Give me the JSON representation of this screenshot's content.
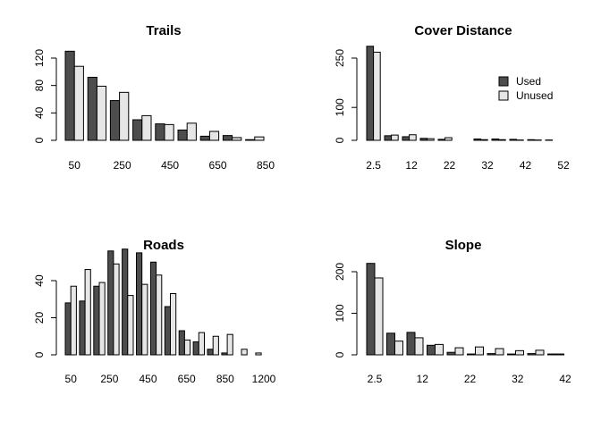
{
  "colors": {
    "used": "#4d4d4d",
    "unused": "#e6e6e6",
    "stroke": "#000000"
  },
  "legend": {
    "placement": "top-right",
    "panel": "Cover Distance",
    "labels": [
      "Used",
      "Unused"
    ]
  },
  "chart_data": [
    {
      "type": "bar",
      "title": "Trails",
      "categories": [
        "50",
        "150",
        "250",
        "350",
        "450",
        "550",
        "650",
        "750",
        "850"
      ],
      "xtick_labels": [
        "50",
        "250",
        "450",
        "650",
        "850"
      ],
      "series": [
        {
          "name": "Used",
          "values": [
            130,
            92,
            58,
            30,
            24,
            15,
            6,
            7,
            1
          ]
        },
        {
          "name": "Unused",
          "values": [
            108,
            79,
            70,
            36,
            23,
            25,
            13,
            4,
            5
          ]
        }
      ],
      "yticks": [
        0,
        40,
        80,
        120
      ],
      "ylim": [
        0,
        140
      ]
    },
    {
      "type": "bar",
      "title": "Cover Distance",
      "categories": [
        "2.5",
        "7.5",
        "12.5",
        "17.5",
        "22.5",
        "27.5",
        "32.5",
        "37.5",
        "42.5",
        "47.5",
        "52.5"
      ],
      "xtick_labels": [
        "2.5",
        "12",
        "22",
        "32",
        "42",
        "52"
      ],
      "series": [
        {
          "name": "Used",
          "values": [
            286,
            14,
            11,
            6,
            3,
            0,
            4,
            4,
            3,
            2,
            1
          ]
        },
        {
          "name": "Unused",
          "values": [
            268,
            16,
            17,
            5,
            8,
            0,
            2,
            2,
            1,
            1,
            0
          ]
        }
      ],
      "yticks": [
        0,
        100,
        250
      ],
      "ylim": [
        0,
        300
      ]
    },
    {
      "type": "bar",
      "title": "Roads",
      "categories": [
        "50",
        "150",
        "250",
        "350",
        "450",
        "550",
        "650",
        "750",
        "850",
        "950",
        "1050",
        "1150",
        "1250",
        "1350"
      ],
      "xtick_labels": [
        "50",
        "250",
        "450",
        "650",
        "850",
        "1200"
      ],
      "series": [
        {
          "name": "Used",
          "values": [
            28,
            29,
            37,
            56,
            57,
            55,
            50,
            26,
            13,
            7,
            3,
            1,
            0,
            0
          ]
        },
        {
          "name": "Unused",
          "values": [
            37,
            46,
            39,
            49,
            32,
            38,
            43,
            33,
            8,
            12,
            10,
            11,
            3,
            1
          ]
        }
      ],
      "yticks": [
        0,
        20,
        40
      ],
      "ylim": [
        0,
        62
      ]
    },
    {
      "type": "bar",
      "title": "Slope",
      "categories": [
        "2.5",
        "7.5",
        "12.5",
        "17.5",
        "22.5",
        "27.5",
        "32.5",
        "37.5",
        "42.5",
        "47.5"
      ],
      "xtick_labels": [
        "2.5",
        "12",
        "22",
        "32",
        "42"
      ],
      "series": [
        {
          "name": "Used",
          "values": [
            220,
            52,
            54,
            23,
            6,
            2,
            3,
            2,
            3,
            2
          ]
        },
        {
          "name": "Unused",
          "values": [
            185,
            33,
            41,
            25,
            17,
            19,
            15,
            10,
            11,
            2
          ]
        }
      ],
      "yticks": [
        0,
        100,
        200
      ],
      "ylim": [
        0,
        240
      ]
    }
  ]
}
